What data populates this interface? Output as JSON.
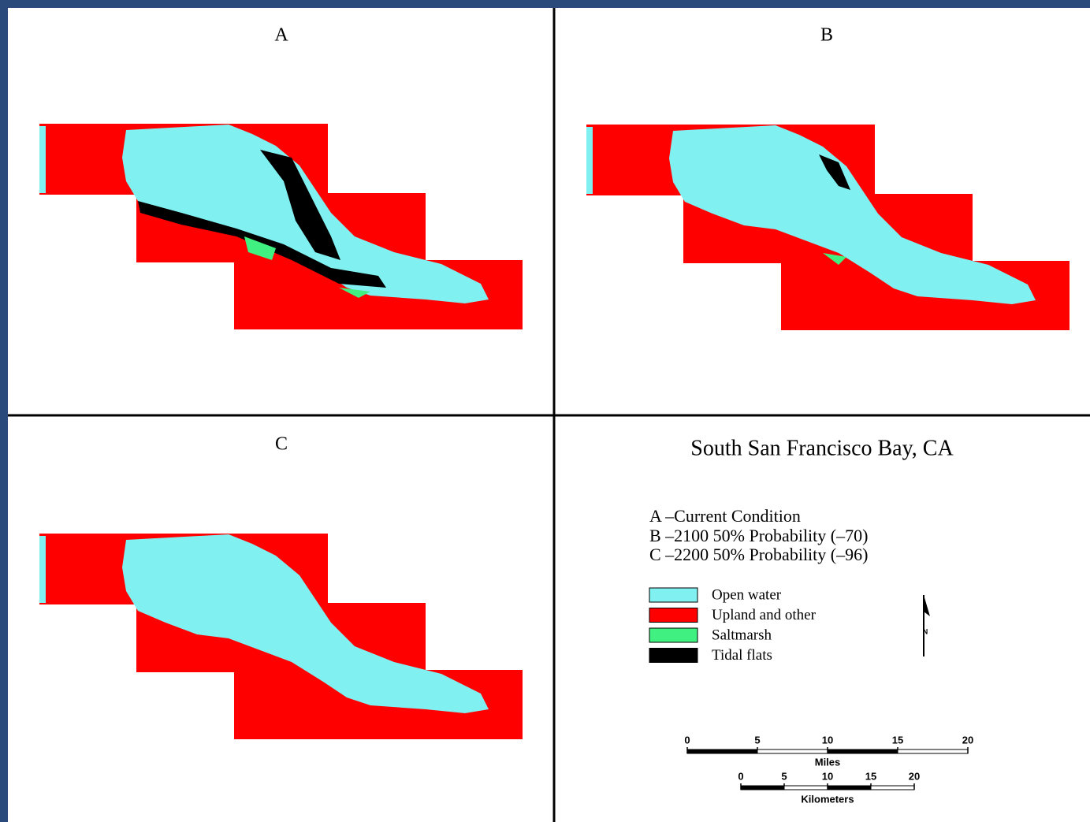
{
  "panels": [
    {
      "label": "A"
    },
    {
      "label": "B"
    },
    {
      "label": "C"
    }
  ],
  "title": "South San Francisco Bay, CA",
  "scenarios": [
    "A –Current Condition",
    "B –2100 50% Probability (–70)",
    "C –2200 50% Probability (–96)"
  ],
  "legend": [
    {
      "label": "Open water",
      "color": "#80f0f0"
    },
    {
      "label": "Upland and other",
      "color": "#ff0000"
    },
    {
      "label": "Saltmarsh",
      "color": "#40f080"
    },
    {
      "label": "Tidal flats",
      "color": "#000000"
    }
  ],
  "north_label": "N",
  "scale": {
    "miles": {
      "ticks": [
        0,
        5,
        10,
        15,
        20
      ],
      "label": "Miles"
    },
    "kilometers": {
      "ticks": [
        0,
        5,
        10,
        15,
        20
      ],
      "label": "Kilometers"
    }
  }
}
